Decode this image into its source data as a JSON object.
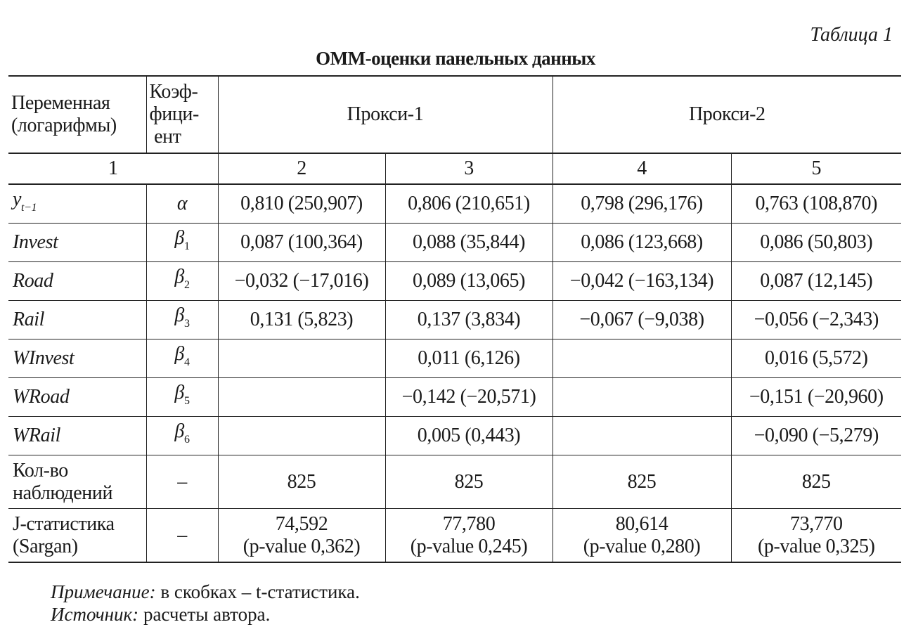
{
  "table_number": "Таблица 1",
  "title": "ОММ-оценки панельных данных",
  "header": {
    "variable": "Переменная (логарифмы)",
    "coefficient": "Коэф-фици-ент",
    "proxy1": "Прокси-1",
    "proxy2": "Прокси-2"
  },
  "column_numbers": [
    "1",
    "2",
    "3",
    "4",
    "5"
  ],
  "rows": [
    {
      "var": "y",
      "var_sub": "t−1",
      "coef": "α",
      "coef_sub": "",
      "values": [
        "0,810 (250,907)",
        "0,806 (210,651)",
        "0,798 (296,176)",
        "0,763 (108,870)"
      ]
    },
    {
      "var": "Invest",
      "var_sub": "",
      "coef": "β",
      "coef_sub": "1",
      "values": [
        "0,087 (100,364)",
        "0,088 (35,844)",
        "0,086 (123,668)",
        "0,086 (50,803)"
      ]
    },
    {
      "var": "Road",
      "var_sub": "",
      "coef": "β",
      "coef_sub": "2",
      "values": [
        "−0,032 (−17,016)",
        "0,089 (13,065)",
        "−0,042 (−163,134)",
        "0,087 (12,145)"
      ]
    },
    {
      "var": "Rail",
      "var_sub": "",
      "coef": "β",
      "coef_sub": "3",
      "values": [
        "0,131 (5,823)",
        "0,137 (3,834)",
        "−0,067 (−9,038)",
        "−0,056 (−2,343)"
      ]
    },
    {
      "var": "WInvest",
      "var_sub": "",
      "coef": "β",
      "coef_sub": "4",
      "values": [
        "",
        "0,011 (6,126)",
        "",
        "0,016 (5,572)"
      ]
    },
    {
      "var": "WRoad",
      "var_sub": "",
      "coef": "β",
      "coef_sub": "5",
      "values": [
        "",
        "−0,142 (−20,571)",
        "",
        "−0,151 (−20,960)"
      ]
    },
    {
      "var": "WRail",
      "var_sub": "",
      "coef": "β",
      "coef_sub": "6",
      "values": [
        "",
        "0,005 (0,443)",
        "",
        "−0,090 (−5,279)"
      ]
    }
  ],
  "observations": {
    "label_line1": "Кол-во",
    "label_line2": "наблюдений",
    "coef": "–",
    "values": [
      "825",
      "825",
      "825",
      "825"
    ]
  },
  "jstat": {
    "label_line1": "J-статистика",
    "label_line2": "(Sargan)",
    "coef": "–",
    "values": [
      {
        "stat": "74,592",
        "p": "(p-value 0,362)"
      },
      {
        "stat": "77,780",
        "p": "(p-value 0,245)"
      },
      {
        "stat": "80,614",
        "p": "(p-value 0,280)"
      },
      {
        "stat": "73,770",
        "p": "(p-value 0,325)"
      }
    ]
  },
  "notes": {
    "note_label": "Примечание:",
    "note_text": " в скобках – t-статистика.",
    "source_label": "Источник:",
    "source_text": " расчеты автора."
  }
}
